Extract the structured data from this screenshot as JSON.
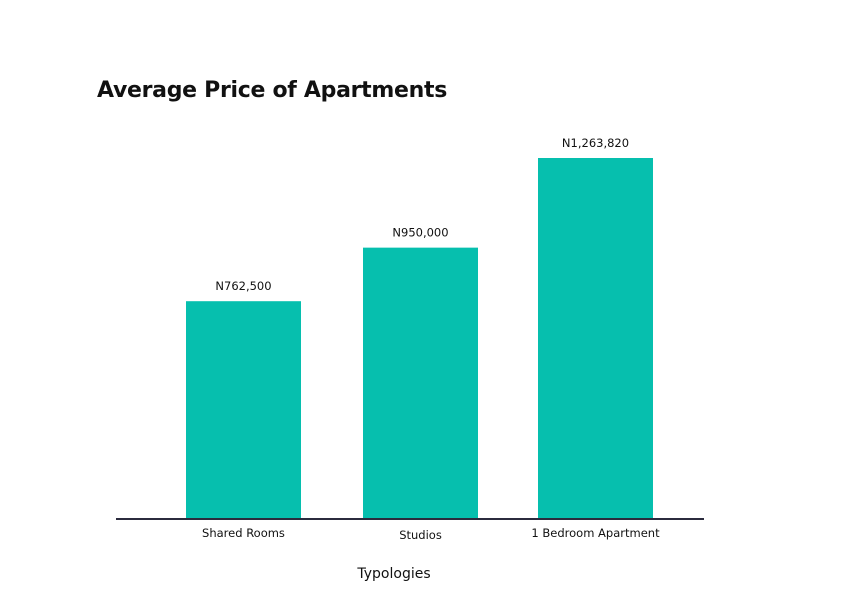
{
  "chart_data": {
    "type": "bar",
    "title": "Average Price of Apartments",
    "xlabel": "Typologies",
    "ylabel": "",
    "categories": [
      "Shared Rooms",
      "Studios",
      "1 Bedroom Apartment"
    ],
    "values": [
      762500,
      950000,
      1263820
    ],
    "data_labels": [
      "N762,500",
      "N950,000",
      "N1,263,820"
    ],
    "ylim": [
      0,
      1263820
    ],
    "grid": false,
    "legend": "none",
    "colors": {
      "bar": "#06bfae",
      "axis": "#2b2b3d"
    }
  }
}
